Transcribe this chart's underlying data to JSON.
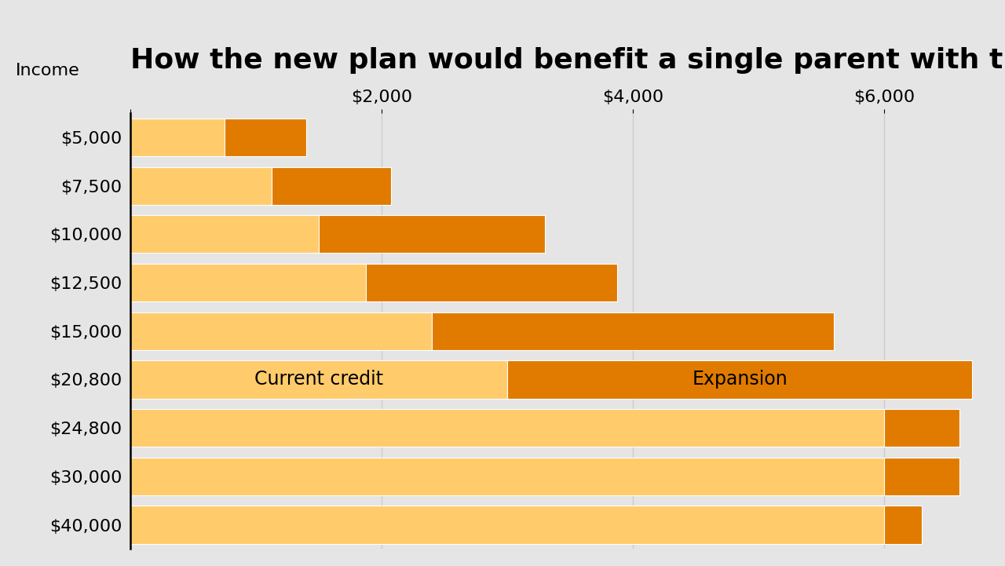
{
  "title": "How the new plan would benefit a single parent with three children",
  "income_labels": [
    "$5,000",
    "$7,500",
    "$10,000",
    "$12,500",
    "$15,000",
    "$20,800",
    "$24,800",
    "$30,000",
    "$40,000"
  ],
  "current_credit": [
    750,
    1125,
    1500,
    1875,
    2400,
    3000,
    6000,
    6000,
    6000
  ],
  "expansion": [
    650,
    950,
    1800,
    2000,
    3200,
    3700,
    600,
    600,
    300
  ],
  "color_current": "#FFCB6B",
  "color_expansion": "#E07B00",
  "color_bg": "#E5E5E5",
  "xticks": [
    0,
    2000,
    4000,
    6000
  ],
  "xlim": [
    0,
    6800
  ],
  "annotation_current": "Current credit",
  "annotation_expansion": "Expansion",
  "title_fontsize": 26,
  "label_fontsize": 16,
  "tick_fontsize": 16,
  "grid_color": "#CCCCCC"
}
